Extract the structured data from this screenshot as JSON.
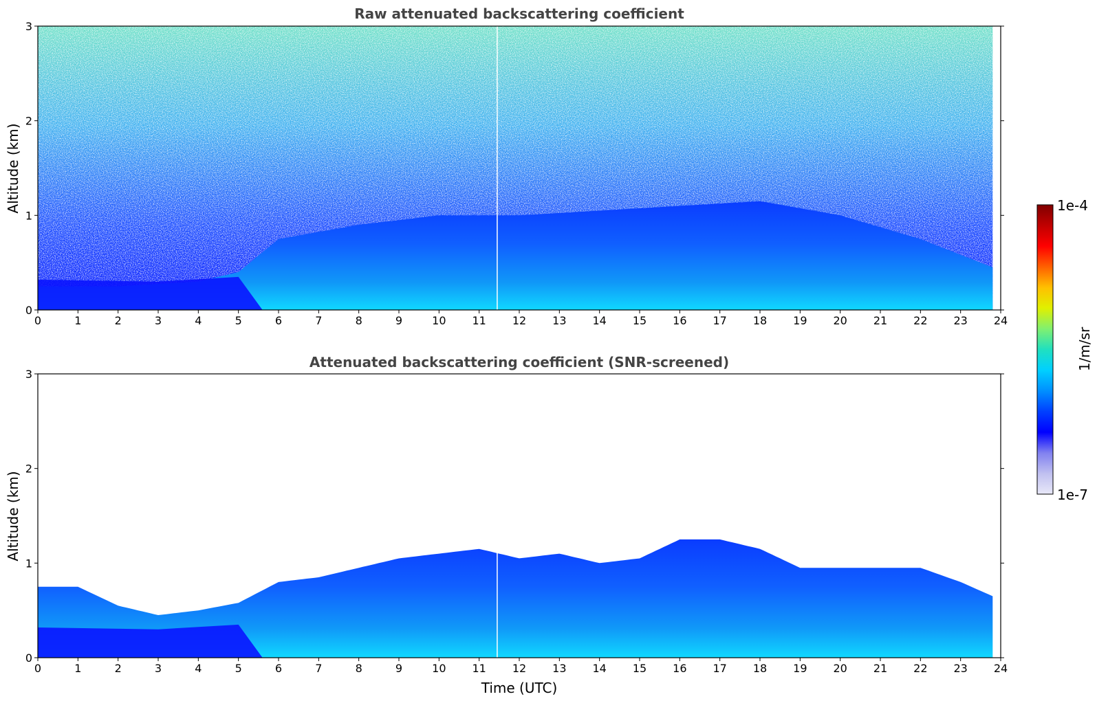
{
  "chart_data": [
    {
      "type": "heatmap",
      "title": "Raw attenuated backscattering coefficient",
      "xlabel": "",
      "ylabel": "Altitude (km)",
      "xlim": [
        0,
        24
      ],
      "ylim": [
        0,
        3
      ],
      "xticks": [
        "0",
        "1",
        "2",
        "3",
        "4",
        "5",
        "6",
        "7",
        "8",
        "9",
        "10",
        "11",
        "12",
        "13",
        "14",
        "15",
        "16",
        "17",
        "18",
        "19",
        "20",
        "21",
        "22",
        "23",
        "24"
      ],
      "yticks": [
        "0",
        "1",
        "2",
        "3"
      ],
      "data_extent_hours": [
        0,
        23.8
      ],
      "colorscale": "log",
      "grid": false,
      "features": {
        "boundary_layer_top_km": [
          [
            0,
            0.25
          ],
          [
            2,
            0.25
          ],
          [
            4,
            0.3
          ],
          [
            5,
            0.4
          ],
          [
            6,
            0.75
          ],
          [
            8,
            0.9
          ],
          [
            10,
            1.0
          ],
          [
            12,
            1.0
          ],
          [
            14,
            1.05
          ],
          [
            16,
            1.1
          ],
          [
            18,
            1.15
          ],
          [
            20,
            1.0
          ],
          [
            22,
            0.75
          ],
          [
            23.8,
            0.45
          ]
        ],
        "noise_at_high_altitude": true,
        "missing_profile_hour": 11.45
      }
    },
    {
      "type": "heatmap",
      "title": "Attenuated backscattering coefficient (SNR-screened)",
      "xlabel": "Time (UTC)",
      "ylabel": "Altitude (km)",
      "xlim": [
        0,
        24
      ],
      "ylim": [
        0,
        3
      ],
      "xticks": [
        "0",
        "1",
        "2",
        "3",
        "4",
        "5",
        "6",
        "7",
        "8",
        "9",
        "10",
        "11",
        "12",
        "13",
        "14",
        "15",
        "16",
        "17",
        "18",
        "19",
        "20",
        "21",
        "22",
        "23",
        "24"
      ],
      "yticks": [
        "0",
        "1",
        "2",
        "3"
      ],
      "data_extent_hours": [
        0,
        23.8
      ],
      "colorscale": "log",
      "grid": false,
      "features": {
        "boundary_layer_top_km": [
          [
            0,
            0.75
          ],
          [
            1,
            0.75
          ],
          [
            2,
            0.55
          ],
          [
            3,
            0.45
          ],
          [
            4,
            0.5
          ],
          [
            5,
            0.58
          ],
          [
            6,
            0.8
          ],
          [
            7,
            0.85
          ],
          [
            8,
            0.95
          ],
          [
            9,
            1.05
          ],
          [
            10,
            1.1
          ],
          [
            11,
            1.15
          ],
          [
            12,
            1.05
          ],
          [
            13,
            1.1
          ],
          [
            14,
            1.0
          ],
          [
            15,
            1.05
          ],
          [
            16,
            1.25
          ],
          [
            17,
            1.25
          ],
          [
            18,
            1.15
          ],
          [
            19,
            0.95
          ],
          [
            20,
            0.95
          ],
          [
            21,
            0.95
          ],
          [
            22,
            0.95
          ],
          [
            23,
            0.8
          ],
          [
            23.8,
            0.65
          ]
        ],
        "missing_profile_hour": 11.45
      }
    }
  ],
  "colorbar": {
    "label": "1/m/sr",
    "min_label": "1e-7",
    "max_label": "1e-4",
    "scale": "log",
    "colormap": [
      "#e8e8f8",
      "#c0c0f0",
      "#8080f0",
      "#0000ff",
      "#0040ff",
      "#0090ff",
      "#00d0ff",
      "#20e0c0",
      "#80f070",
      "#e0f000",
      "#ffc000",
      "#ff6000",
      "#ff0000",
      "#c00000",
      "#800000"
    ]
  }
}
